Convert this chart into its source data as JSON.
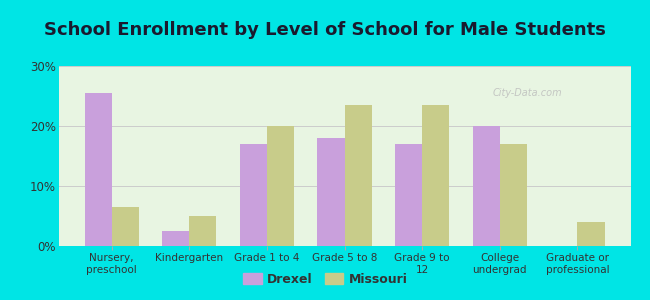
{
  "title": "School Enrollment by Level of School for Male Students",
  "categories": [
    "Nursery,\npreschool",
    "Kindergarten",
    "Grade 1 to 4",
    "Grade 5 to 8",
    "Grade 9 to\n12",
    "College\nundergrad",
    "Graduate or\nprofessional"
  ],
  "drexel": [
    25.5,
    2.5,
    17.0,
    18.0,
    17.0,
    20.0,
    0.0
  ],
  "missouri": [
    6.5,
    5.0,
    20.0,
    23.5,
    23.5,
    17.0,
    4.0
  ],
  "drexel_color": "#c9a0dc",
  "missouri_color": "#c8cc8a",
  "background_color": "#00e5e5",
  "plot_bg_color": "#e8f5e2",
  "ylim": [
    0,
    30
  ],
  "yticks": [
    0,
    10,
    20,
    30
  ],
  "yticklabels": [
    "0%",
    "10%",
    "20%",
    "30%"
  ],
  "legend_labels": [
    "Drexel",
    "Missouri"
  ],
  "title_fontsize": 13,
  "bar_width": 0.35,
  "grid_color": "#cccccc",
  "title_color": "#1a1a2e",
  "watermark": "City-Data.com",
  "watermark_color": "#bbbbbb"
}
